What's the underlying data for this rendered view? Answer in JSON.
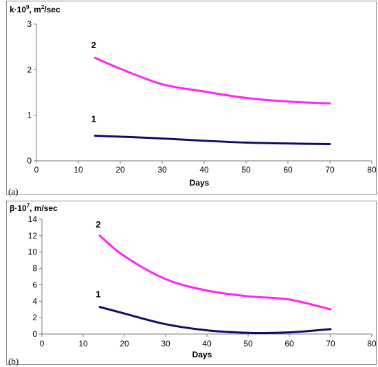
{
  "chart_data": [
    {
      "panel": "(a)",
      "type": "line",
      "ylabel_base": "k·10",
      "ylabel_exp": "9",
      "ylabel_unit": ", m",
      "ylabel_unit_exp": "2",
      "ylabel_tail": "/sec",
      "xlabel": "Days",
      "xlim": [
        0,
        80
      ],
      "ylim": [
        0,
        3
      ],
      "xticks": [
        0,
        10,
        20,
        30,
        40,
        50,
        60,
        70,
        80
      ],
      "yticks": [
        0,
        1,
        2,
        3
      ],
      "grid": false,
      "series": [
        {
          "name": "1",
          "color": "#0d0d6e",
          "x": [
            14,
            20,
            30,
            40,
            50,
            60,
            70
          ],
          "y": [
            0.55,
            0.53,
            0.49,
            0.44,
            0.4,
            0.38,
            0.37
          ]
        },
        {
          "name": "2",
          "color": "#ff22ff",
          "x": [
            14,
            20,
            30,
            40,
            50,
            60,
            70
          ],
          "y": [
            2.26,
            2.02,
            1.68,
            1.52,
            1.38,
            1.3,
            1.26
          ]
        }
      ]
    },
    {
      "panel": "(b)",
      "type": "line",
      "ylabel_base": "β·10",
      "ylabel_exp": "7",
      "ylabel_unit": ", m/sec",
      "ylabel_unit_exp": "",
      "ylabel_tail": "",
      "xlabel": "Days",
      "xlim": [
        0,
        80
      ],
      "ylim": [
        0,
        14
      ],
      "xticks": [
        0,
        10,
        20,
        30,
        40,
        50,
        60,
        70,
        80
      ],
      "yticks": [
        0,
        2,
        4,
        6,
        8,
        10,
        12,
        14
      ],
      "grid": false,
      "series": [
        {
          "name": "1",
          "color": "#0d0d6e",
          "x": [
            14,
            20,
            30,
            40,
            50,
            60,
            70
          ],
          "y": [
            3.3,
            2.5,
            1.2,
            0.45,
            0.15,
            0.2,
            0.6
          ]
        },
        {
          "name": "2",
          "color": "#ff22ff",
          "x": [
            14,
            20,
            30,
            40,
            50,
            60,
            70
          ],
          "y": [
            12.0,
            9.5,
            6.7,
            5.3,
            4.6,
            4.2,
            3.0
          ]
        }
      ]
    }
  ]
}
